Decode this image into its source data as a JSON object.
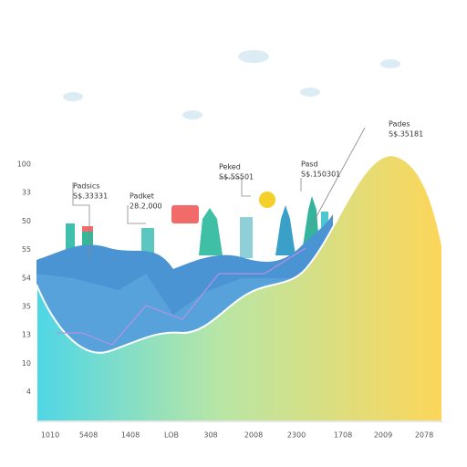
{
  "y_labels": [
    "100",
    "33",
    "50",
    "55",
    "54",
    "35",
    "13",
    "10",
    "4"
  ],
  "x_labels": [
    "1010",
    "5408",
    "1408",
    "LOB",
    "308",
    "2008",
    "2300",
    "1708",
    "2009",
    "2078"
  ],
  "callouts": [
    {
      "title": "Padsics",
      "value": "S$.33331"
    },
    {
      "title": "Padket",
      "value": "28.2,000"
    },
    {
      "title": "Peked",
      "value": "S$.5S501"
    },
    {
      "title": "Pasd",
      "value": "S$.150301"
    },
    {
      "title": "Pades",
      "value": "S$.35181"
    }
  ]
}
